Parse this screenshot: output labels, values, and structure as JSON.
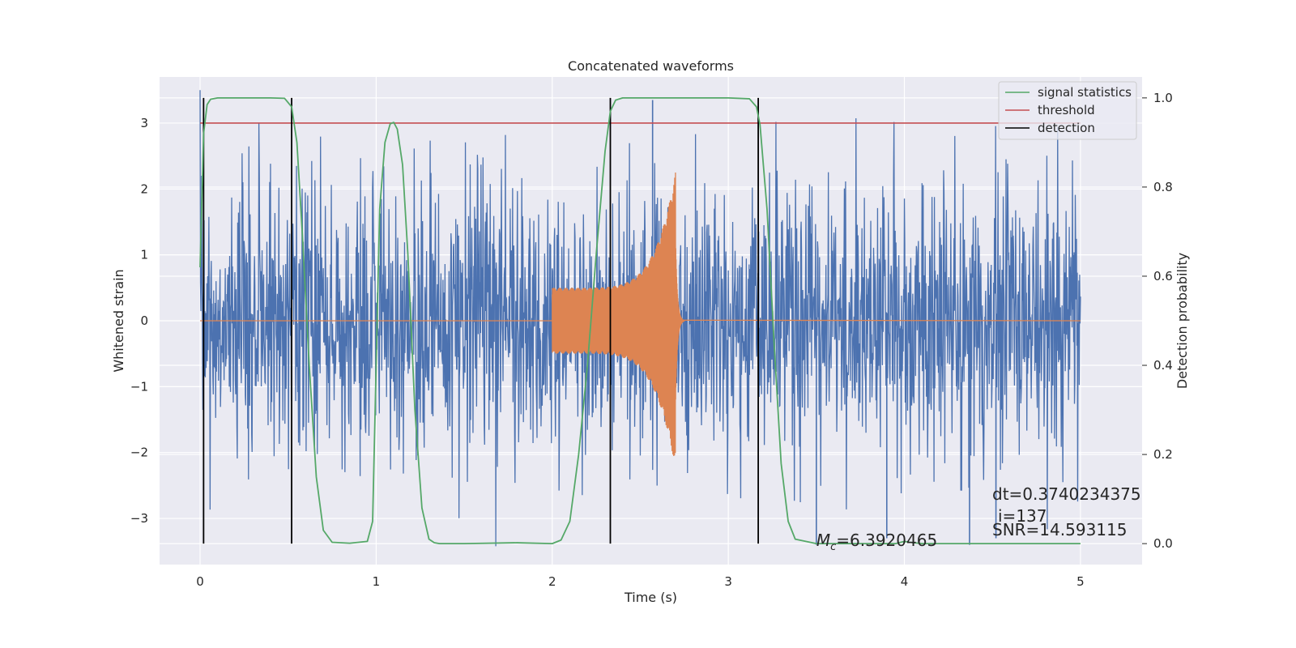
{
  "chart_data": {
    "type": "line",
    "title": "Concatenated waveforms",
    "xlabel": "Time (s)",
    "ylabel": "Whitened strain",
    "y2label": "Detection probability",
    "xlim": [
      -0.23,
      5.35
    ],
    "ylim": [
      -3.7,
      3.7
    ],
    "y2lim": [
      -0.047,
      1.047
    ],
    "xticks": [
      0,
      1,
      2,
      3,
      4,
      5
    ],
    "yticks": [
      -3,
      -2,
      -1,
      0,
      1,
      2,
      3
    ],
    "y2ticks": [
      0.0,
      0.2,
      0.4,
      0.6,
      0.8,
      1.0
    ],
    "grid": true,
    "legend_position": "top-right",
    "colors": {
      "background": "#eaeaf2",
      "grid": "#ffffff",
      "strain": "#4c72b0",
      "template": "#dd8452",
      "signal_statistics": "#55a868",
      "threshold": "#c44e52",
      "detection": "#000000"
    },
    "series": [
      {
        "name": "signal statistics",
        "axis": "right",
        "x": [
          0,
          0.02,
          0.04,
          0.06,
          0.1,
          0.2,
          0.4,
          0.48,
          0.52,
          0.55,
          0.58,
          0.62,
          0.66,
          0.7,
          0.75,
          0.85,
          0.95,
          0.98,
          1.0,
          1.02,
          1.05,
          1.08,
          1.1,
          1.12,
          1.15,
          1.18,
          1.22,
          1.26,
          1.3,
          1.33,
          1.36,
          1.5,
          1.8,
          2.0,
          2.05,
          2.1,
          2.15,
          2.2,
          2.25,
          2.3,
          2.33,
          2.36,
          2.4,
          2.5,
          3.0,
          3.12,
          3.16,
          3.18,
          3.22,
          3.26,
          3.3,
          3.34,
          3.38,
          3.5,
          3.8,
          3.95,
          4.0,
          4.03,
          4.1,
          4.5,
          5.0
        ],
        "values": [
          0.62,
          0.92,
          0.985,
          0.997,
          1.0,
          1.0,
          1.0,
          0.999,
          0.98,
          0.9,
          0.7,
          0.4,
          0.15,
          0.03,
          0.003,
          0.001,
          0.005,
          0.05,
          0.4,
          0.75,
          0.9,
          0.942,
          0.945,
          0.93,
          0.85,
          0.65,
          0.3,
          0.08,
          0.01,
          0.002,
          0.0,
          0.0,
          0.002,
          0.0,
          0.008,
          0.05,
          0.2,
          0.4,
          0.65,
          0.88,
          0.97,
          0.995,
          1.0,
          1.0,
          1.0,
          0.998,
          0.98,
          0.94,
          0.75,
          0.45,
          0.18,
          0.05,
          0.01,
          0.0,
          0.0,
          0.0,
          0.005,
          0.003,
          0.0,
          0.0,
          0.0
        ]
      },
      {
        "name": "threshold",
        "axis": "left",
        "x": [
          0,
          5
        ],
        "values": [
          3.0,
          3.0
        ]
      },
      {
        "name": "detection",
        "axis": "left",
        "x": [
          0.02,
          0.52,
          2.33,
          3.17
        ]
      }
    ],
    "strain": {
      "axis": "left",
      "x_range": [
        0,
        5
      ],
      "typical_amplitude": 1.6,
      "outlier_peaks": [
        {
          "x": 2.57,
          "value": 3.35
        },
        {
          "x": 3.5,
          "value": -3.4
        },
        {
          "x": 3.9,
          "value": -3.3
        },
        {
          "x": 4.52,
          "value": -3.3
        },
        {
          "x": 4.37,
          "value": -3.4
        }
      ]
    },
    "template": {
      "axis": "left",
      "start": 2.0,
      "merger": 2.7,
      "start_amplitude": 0.5,
      "peak_amplitude": 2.25
    },
    "annotations": {
      "mc_symbol": "M",
      "mc_subscript": "c",
      "mc_value": "=6.3920465",
      "dt": "dt=0.3740234375",
      "i": "i=137",
      "snr": "SNR=14.593115"
    }
  }
}
